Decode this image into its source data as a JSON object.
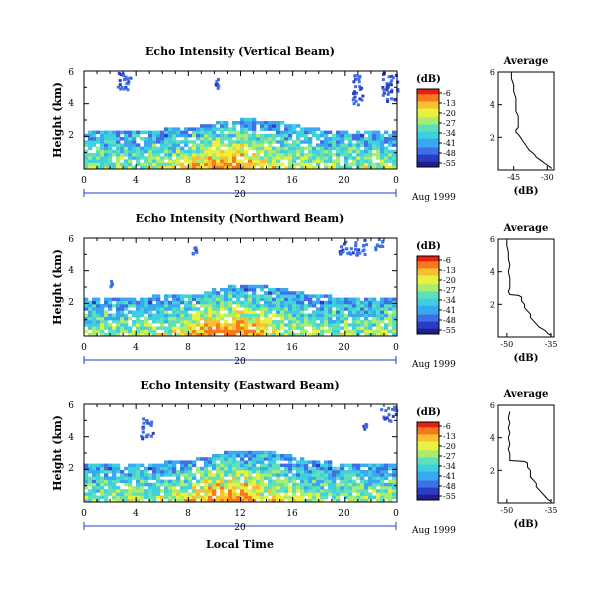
{
  "colors": {
    "scale": [
      "#1f1f8c",
      "#2b3cc4",
      "#3f6fe6",
      "#38a8f0",
      "#3fd0e0",
      "#5fe0b8",
      "#a8ec70",
      "#e8f040",
      "#f8c030",
      "#f87820",
      "#e82010"
    ],
    "axis": "#000000",
    "background": "#ffffff"
  },
  "shared": {
    "ylabel": "Height (km)",
    "yticks": [
      "6",
      "4",
      "2"
    ],
    "xticks": [
      "0",
      "4",
      "8",
      "12",
      "16",
      "20",
      "0"
    ],
    "day_label": "20",
    "date_label": "Aug 1999",
    "xlabel": "Local Time",
    "colorbar_unit": "(dB)",
    "colorbar_ticks": [
      "-6",
      "-13",
      "-20",
      "-27",
      "-34",
      "-41",
      "-48",
      "-55"
    ],
    "avg_title": "Average",
    "avg_xlabel": "(dB)",
    "avg_yticks": [
      "6",
      "4",
      "2"
    ]
  },
  "chart_data": [
    {
      "type": "heatmap",
      "title": "Echo Intensity (Vertical Beam)",
      "x_range_hours": [
        0,
        24
      ],
      "y_range_km": [
        0,
        6
      ],
      "value_range_db": [
        -55,
        -6
      ],
      "layer_top_km": [
        2.2,
        2.2,
        2.25,
        2.25,
        2.3,
        2.3,
        2.35,
        2.4,
        2.45,
        2.6,
        2.75,
        2.9,
        2.95,
        2.95,
        2.9,
        2.8,
        2.6,
        2.45,
        2.35,
        2.3,
        2.3,
        2.25,
        2.2,
        2.2,
        2.2
      ],
      "upper_echo_regions": [
        {
          "t0": 2.5,
          "t1": 3.5,
          "h0": 4.8,
          "h1": 6.0
        },
        {
          "t0": 10.0,
          "t1": 10.3,
          "h0": 5.0,
          "h1": 5.6
        },
        {
          "t0": 20.5,
          "t1": 21.3,
          "h0": 4.0,
          "h1": 6.0
        },
        {
          "t0": 22.8,
          "t1": 24.0,
          "h0": 4.2,
          "h1": 6.0
        }
      ]
    },
    {
      "type": "heatmap",
      "title": "Echo Intensity (Northward Beam)",
      "x_range_hours": [
        0,
        24
      ],
      "y_range_km": [
        0,
        6
      ],
      "value_range_db": [
        -55,
        -6
      ],
      "layer_top_km": [
        2.3,
        2.3,
        2.3,
        2.3,
        2.35,
        2.35,
        2.4,
        2.45,
        2.5,
        2.65,
        2.8,
        2.95,
        3.0,
        3.0,
        2.95,
        2.85,
        2.65,
        2.5,
        2.4,
        2.35,
        2.35,
        2.3,
        2.3,
        2.3,
        2.3
      ],
      "upper_echo_regions": [
        {
          "t0": 1.9,
          "t1": 2.1,
          "h0": 3.1,
          "h1": 3.5
        },
        {
          "t0": 8.2,
          "t1": 8.6,
          "h0": 5.0,
          "h1": 5.7
        },
        {
          "t0": 19.5,
          "t1": 21.6,
          "h0": 5.0,
          "h1": 6.0
        },
        {
          "t0": 22.2,
          "t1": 22.8,
          "h0": 5.3,
          "h1": 6.0
        }
      ]
    },
    {
      "type": "heatmap",
      "title": "Echo Intensity (Eastward Beam)",
      "x_range_hours": [
        0,
        24
      ],
      "y_range_km": [
        0,
        6
      ],
      "value_range_db": [
        -55,
        -6
      ],
      "layer_top_km": [
        2.25,
        2.25,
        2.25,
        2.3,
        2.3,
        2.35,
        2.35,
        2.4,
        2.5,
        2.65,
        2.85,
        3.0,
        3.05,
        3.05,
        3.0,
        2.9,
        2.7,
        2.5,
        2.4,
        2.35,
        2.3,
        2.3,
        2.25,
        2.25,
        2.25
      ],
      "upper_echo_regions": [
        {
          "t0": 4.3,
          "t1": 5.2,
          "h0": 3.9,
          "h1": 5.3
        },
        {
          "t0": 21.3,
          "t1": 21.6,
          "h0": 4.5,
          "h1": 4.9
        },
        {
          "t0": 22.7,
          "t1": 24.0,
          "h0": 5.0,
          "h1": 5.9
        }
      ]
    },
    {
      "type": "line",
      "title": "Average",
      "xlabel": "(dB)",
      "xticks": [
        "-45",
        "-30"
      ],
      "xlim": [
        -52,
        -27
      ],
      "ylim": [
        0,
        6
      ],
      "x": [
        -46,
        -46,
        -45,
        -45,
        -44,
        -44,
        -44,
        -43,
        -43,
        -43,
        -43,
        -44,
        -44,
        -43,
        -42,
        -41,
        -40,
        -39,
        -38,
        -36,
        -35,
        -33,
        -31,
        -29,
        -28
      ],
      "y": [
        6.0,
        5.6,
        5.2,
        4.8,
        4.4,
        4.0,
        3.6,
        3.3,
        3.0,
        2.8,
        2.6,
        2.45,
        2.3,
        2.2,
        2.0,
        1.8,
        1.6,
        1.4,
        1.2,
        1.0,
        0.8,
        0.6,
        0.4,
        0.2,
        0.1
      ]
    },
    {
      "type": "line",
      "title": "Average",
      "xlabel": "(dB)",
      "xticks": [
        "-50",
        "-35"
      ],
      "xlim": [
        -53,
        -34
      ],
      "ylim": [
        0,
        6
      ],
      "x": [
        -50,
        -50,
        -49.5,
        -49.5,
        -49,
        -49.5,
        -49,
        -49,
        -49,
        -49.5,
        -49,
        -46,
        -45,
        -45,
        -44,
        -44,
        -43,
        -42,
        -42,
        -41,
        -40,
        -39,
        -37,
        -36,
        -35
      ],
      "y": [
        6.0,
        5.6,
        5.2,
        4.8,
        4.4,
        4.0,
        3.6,
        3.3,
        3.0,
        2.8,
        2.6,
        2.55,
        2.45,
        2.2,
        2.0,
        1.8,
        1.6,
        1.4,
        1.2,
        1.0,
        0.8,
        0.6,
        0.4,
        0.2,
        0.1
      ]
    },
    {
      "type": "line",
      "title": "Average",
      "xlabel": "(dB)",
      "xticks": [
        "-50",
        "-35"
      ],
      "xlim": [
        -53,
        -34
      ],
      "ylim": [
        0,
        6
      ],
      "x": [
        -49,
        -49.5,
        -49,
        -49.5,
        -49,
        -49.5,
        -49,
        -49.5,
        -49,
        -49,
        -49,
        -44,
        -43,
        -43,
        -42,
        -42,
        -42,
        -41,
        -40,
        -40,
        -39,
        -38,
        -37,
        -36,
        -35
      ],
      "y": [
        5.6,
        5.2,
        4.9,
        4.6,
        4.3,
        4.0,
        3.6,
        3.3,
        3.0,
        2.8,
        2.6,
        2.55,
        2.45,
        2.2,
        2.0,
        1.8,
        1.6,
        1.4,
        1.2,
        1.0,
        0.8,
        0.6,
        0.4,
        0.2,
        0.1
      ]
    }
  ]
}
